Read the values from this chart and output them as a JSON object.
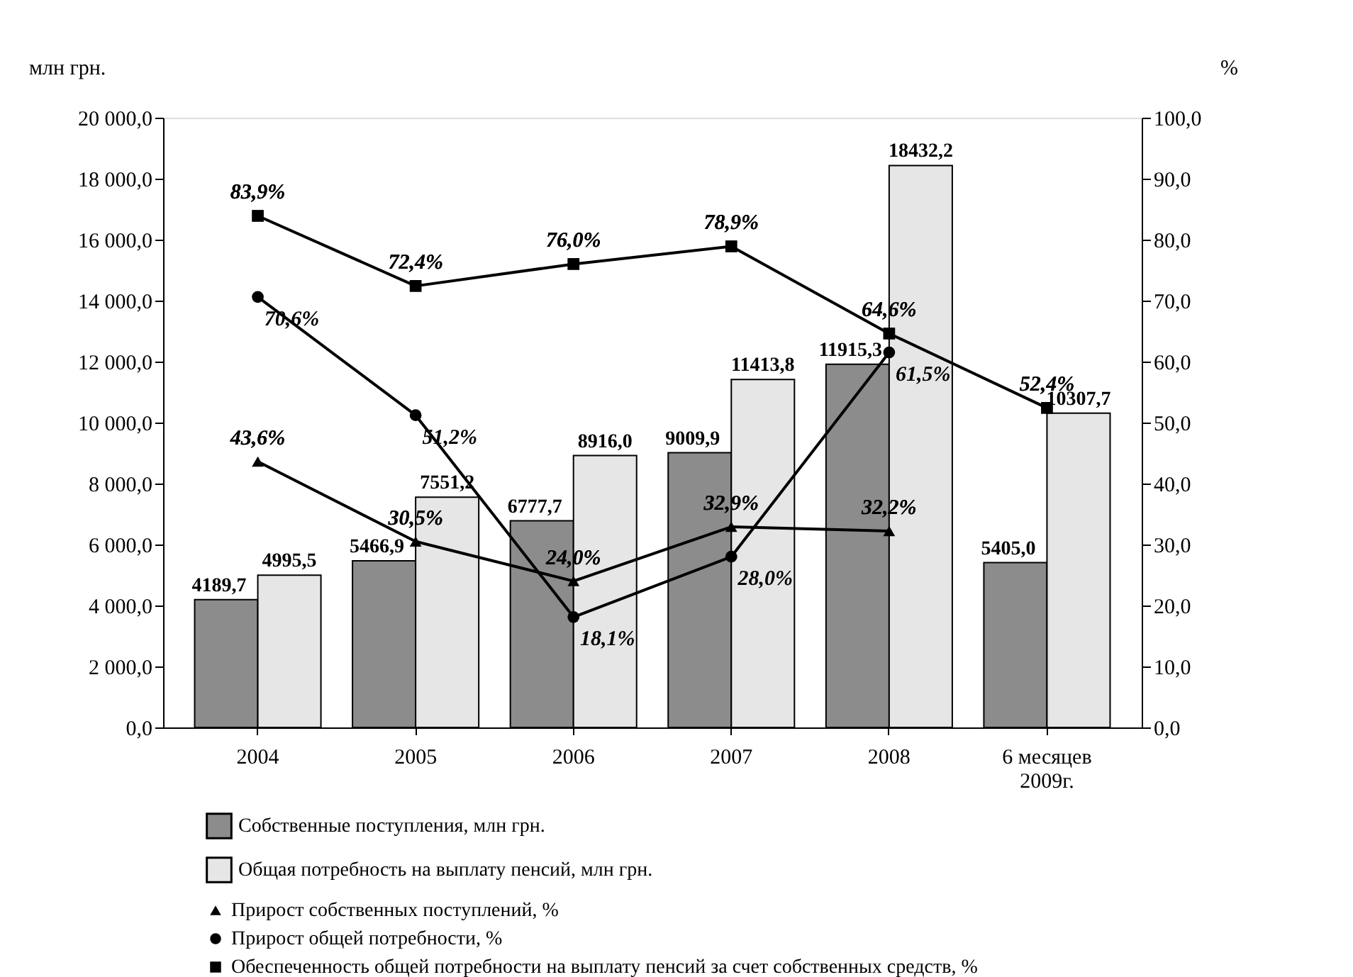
{
  "chart_data": {
    "type": "bar",
    "ylabel": "млн грн.",
    "y2label": "%",
    "categories": [
      "2004",
      "2005",
      "2006",
      "2007",
      "2008",
      "6 месяцев 2009г."
    ],
    "ylim": [
      0,
      20000
    ],
    "yticks": [
      {
        "value": 0,
        "label": "0,0"
      },
      {
        "value": 2000,
        "label": "2 000,0"
      },
      {
        "value": 4000,
        "label": "4 000,0"
      },
      {
        "value": 6000,
        "label": "6 000,0"
      },
      {
        "value": 8000,
        "label": "8 000,0"
      },
      {
        "value": 10000,
        "label": "10 000,0"
      },
      {
        "value": 12000,
        "label": "12 000,0"
      },
      {
        "value": 14000,
        "label": "14 000,0"
      },
      {
        "value": 16000,
        "label": "16 000,0"
      },
      {
        "value": 18000,
        "label": "18 000,0"
      },
      {
        "value": 20000,
        "label": "20 000,0"
      }
    ],
    "y2lim": [
      0,
      100
    ],
    "y2ticks": [
      {
        "value": 0,
        "label": "0,0"
      },
      {
        "value": 10,
        "label": "10,0"
      },
      {
        "value": 20,
        "label": "20,0"
      },
      {
        "value": 30,
        "label": "30,0"
      },
      {
        "value": 40,
        "label": "40,0"
      },
      {
        "value": 50,
        "label": "50,0"
      },
      {
        "value": 60,
        "label": "60,0"
      },
      {
        "value": 70,
        "label": "70,0"
      },
      {
        "value": 80,
        "label": "80,0"
      },
      {
        "value": 90,
        "label": "90,0"
      },
      {
        "value": 100,
        "label": "100,0"
      }
    ],
    "grid": false,
    "legend": "bottom",
    "line_style": "solid",
    "series": [
      {
        "name": "Собственные поступления, млн грн.",
        "color": "#8c8c8c",
        "values": [
          4189.7,
          5466.9,
          6777.7,
          9009.9,
          11915.3,
          5405.0
        ],
        "value_labels": [
          "4189,7",
          "5466,9",
          "6777,7",
          "9009,9",
          "11915,3",
          "5405,0"
        ]
      },
      {
        "name": "Общая потребность на выплату пенсий, млн грн.",
        "color": "#e6e6e6",
        "values": [
          4995.5,
          7551.2,
          8916.0,
          11413.8,
          18432.2,
          10307.7
        ],
        "value_labels": [
          "4995,5",
          "7551,2",
          "8916,0",
          "11413,8",
          "18432,2",
          "10307,7"
        ]
      },
      {
        "name": "Прирост собственных поступлений, %",
        "type": "line",
        "axis": "y2",
        "marker": "triangle",
        "color": "#000000",
        "values": [
          43.6,
          30.5,
          24.0,
          32.9,
          32.2,
          null
        ],
        "value_labels": [
          "43,6%",
          "30,5%",
          "24,0%",
          "32,9%",
          "32,2%",
          null
        ]
      },
      {
        "name": "Прирост общей потребности, %",
        "type": "line",
        "axis": "y2",
        "marker": "circle",
        "color": "#000000",
        "values": [
          70.6,
          51.2,
          18.1,
          28.0,
          61.5,
          null
        ],
        "value_labels": [
          "70,6%",
          "51,2%",
          "18,1%",
          "28,0%",
          "61,5%",
          null
        ]
      },
      {
        "name": "Обеспеченность общей потребности на выплату пенсий за счет собственных средств, %",
        "type": "line",
        "axis": "y2",
        "marker": "square",
        "color": "#000000",
        "values": [
          83.9,
          72.4,
          76.0,
          78.9,
          64.6,
          52.4
        ],
        "value_labels": [
          "83,9%",
          "72,4%",
          "76,0%",
          "78,9%",
          "64,6%",
          "52,4%"
        ]
      }
    ]
  }
}
